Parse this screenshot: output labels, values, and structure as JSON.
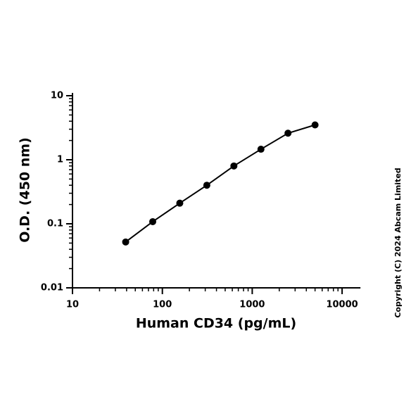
{
  "chart_data": {
    "type": "scatter",
    "xlabel": "Human CD34 (pg/mL)",
    "ylabel": "O.D. (450 nm)",
    "annotation": "Copyright (C) 2024 Abcam Limited",
    "x": [
      39.06,
      78.13,
      156.25,
      312.5,
      625,
      1250,
      2500,
      5000
    ],
    "series": [
      {
        "color": "#000000",
        "values": [
          0.052,
          0.108,
          0.21,
          0.4,
          0.8,
          1.46,
          2.6,
          3.5
        ]
      }
    ],
    "xscale": "log",
    "yscale": "log",
    "xlim": [
      10,
      16000
    ],
    "ylim": [
      0.01,
      10
    ],
    "xticks": [
      10,
      100,
      1000,
      10000
    ],
    "yticks": [
      0.01,
      0.1,
      1,
      10
    ]
  }
}
